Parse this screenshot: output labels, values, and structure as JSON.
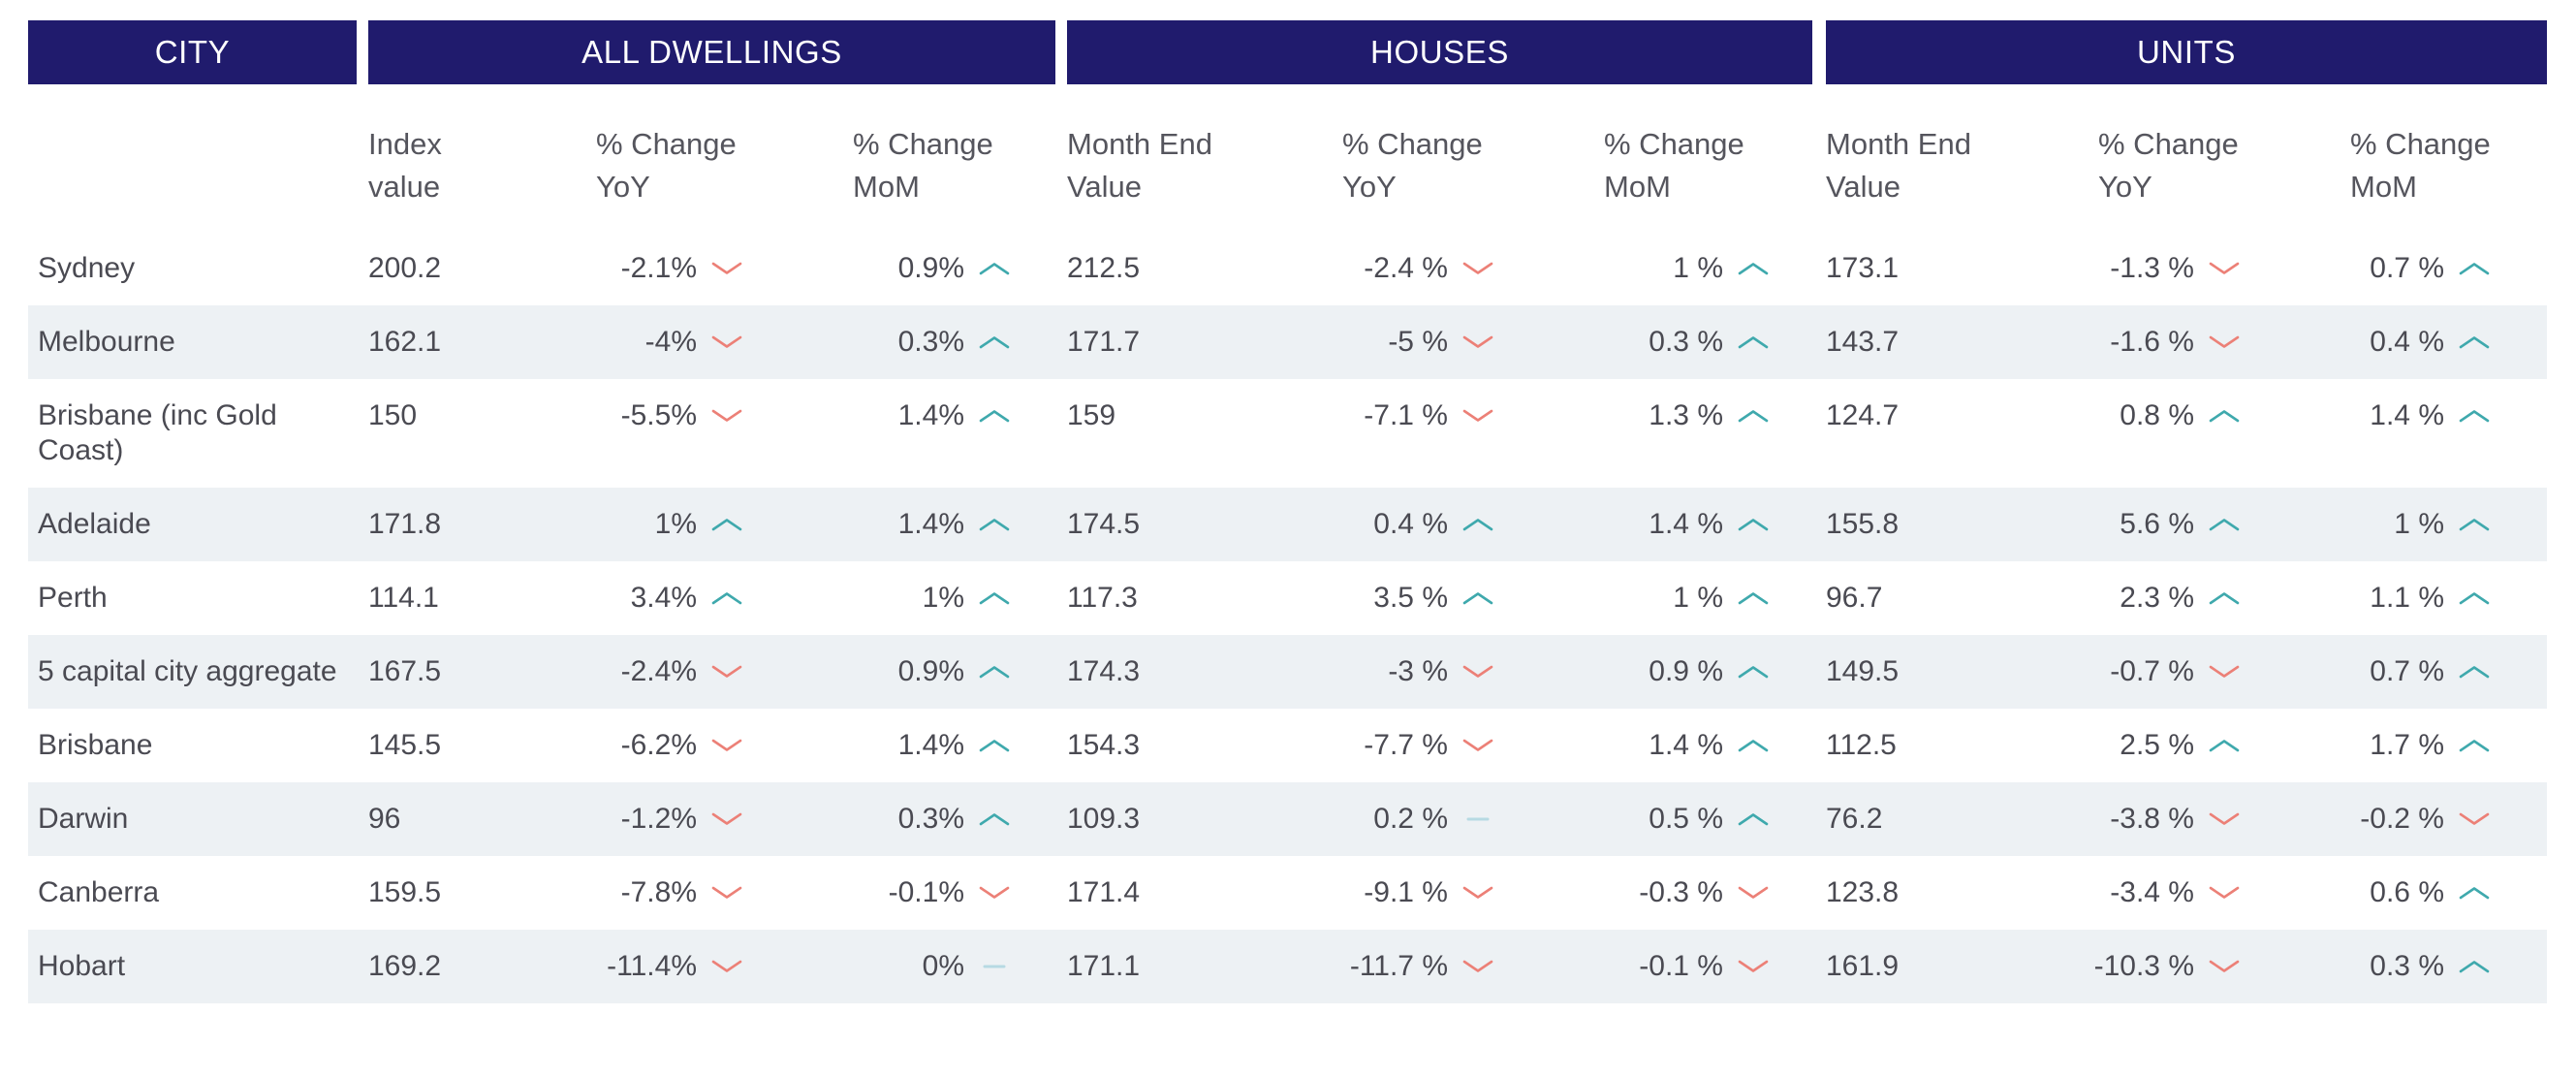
{
  "colors": {
    "header_bg": "#201B6D",
    "header_text": "#FFFFFF",
    "body_text": "#4A4A52",
    "subheader_text": "#55555D",
    "row_stripe": "#EDF1F4",
    "trend_up": "#3FA9AD",
    "trend_down": "#EC8077",
    "trend_flat": "#B7DAE3"
  },
  "table": {
    "group_headers": [
      "CITY",
      "ALL DWELLINGS",
      "HOUSES",
      "UNITS"
    ],
    "column_headers": [
      [
        "Index",
        "value"
      ],
      [
        "% Change",
        "YoY"
      ],
      [
        "% Change",
        "MoM"
      ],
      [
        "Month End",
        "Value"
      ],
      [
        "% Change",
        "YoY"
      ],
      [
        "% Change",
        "MoM"
      ],
      [
        "Month End",
        "Value"
      ],
      [
        "% Change",
        "YoY"
      ],
      [
        "% Change",
        "MoM"
      ]
    ],
    "rows": [
      {
        "city": "Sydney",
        "metrics": [
          {
            "v": "200.2"
          },
          {
            "v": "-2.1%",
            "t": "down"
          },
          {
            "v": "0.9%",
            "t": "up"
          },
          {
            "v": "212.5"
          },
          {
            "v": "-2.4 %",
            "t": "down"
          },
          {
            "v": "1 %",
            "t": "up"
          },
          {
            "v": "173.1"
          },
          {
            "v": "-1.3 %",
            "t": "down"
          },
          {
            "v": "0.7 %",
            "t": "up"
          }
        ]
      },
      {
        "city": "Melbourne",
        "metrics": [
          {
            "v": "162.1"
          },
          {
            "v": "-4%",
            "t": "down"
          },
          {
            "v": "0.3%",
            "t": "up"
          },
          {
            "v": "171.7"
          },
          {
            "v": "-5 %",
            "t": "down"
          },
          {
            "v": "0.3 %",
            "t": "up"
          },
          {
            "v": "143.7"
          },
          {
            "v": "-1.6 %",
            "t": "down"
          },
          {
            "v": "0.4 %",
            "t": "up"
          }
        ]
      },
      {
        "city": "Brisbane (inc Gold Coast)",
        "metrics": [
          {
            "v": "150"
          },
          {
            "v": "-5.5%",
            "t": "down"
          },
          {
            "v": "1.4%",
            "t": "up"
          },
          {
            "v": "159"
          },
          {
            "v": "-7.1 %",
            "t": "down"
          },
          {
            "v": "1.3 %",
            "t": "up"
          },
          {
            "v": "124.7"
          },
          {
            "v": "0.8 %",
            "t": "up"
          },
          {
            "v": "1.4 %",
            "t": "up"
          }
        ]
      },
      {
        "city": "Adelaide",
        "metrics": [
          {
            "v": "171.8"
          },
          {
            "v": "1%",
            "t": "up"
          },
          {
            "v": "1.4%",
            "t": "up"
          },
          {
            "v": "174.5"
          },
          {
            "v": "0.4 %",
            "t": "up"
          },
          {
            "v": "1.4 %",
            "t": "up"
          },
          {
            "v": "155.8"
          },
          {
            "v": "5.6 %",
            "t": "up"
          },
          {
            "v": "1 %",
            "t": "up"
          }
        ]
      },
      {
        "city": "Perth",
        "metrics": [
          {
            "v": "114.1"
          },
          {
            "v": "3.4%",
            "t": "up"
          },
          {
            "v": "1%",
            "t": "up"
          },
          {
            "v": "117.3"
          },
          {
            "v": "3.5 %",
            "t": "up"
          },
          {
            "v": "1 %",
            "t": "up"
          },
          {
            "v": "96.7"
          },
          {
            "v": "2.3 %",
            "t": "up"
          },
          {
            "v": "1.1 %",
            "t": "up"
          }
        ]
      },
      {
        "city": "5 capital city aggregate",
        "metrics": [
          {
            "v": "167.5"
          },
          {
            "v": "-2.4%",
            "t": "down"
          },
          {
            "v": "0.9%",
            "t": "up"
          },
          {
            "v": "174.3"
          },
          {
            "v": "-3 %",
            "t": "down"
          },
          {
            "v": "0.9 %",
            "t": "up"
          },
          {
            "v": "149.5"
          },
          {
            "v": "-0.7 %",
            "t": "down"
          },
          {
            "v": "0.7 %",
            "t": "up"
          }
        ]
      },
      {
        "city": "Brisbane",
        "metrics": [
          {
            "v": "145.5"
          },
          {
            "v": "-6.2%",
            "t": "down"
          },
          {
            "v": "1.4%",
            "t": "up"
          },
          {
            "v": "154.3"
          },
          {
            "v": "-7.7 %",
            "t": "down"
          },
          {
            "v": "1.4 %",
            "t": "up"
          },
          {
            "v": "112.5"
          },
          {
            "v": "2.5 %",
            "t": "up"
          },
          {
            "v": "1.7 %",
            "t": "up"
          }
        ]
      },
      {
        "city": "Darwin",
        "metrics": [
          {
            "v": "96"
          },
          {
            "v": "-1.2%",
            "t": "down"
          },
          {
            "v": "0.3%",
            "t": "up"
          },
          {
            "v": "109.3"
          },
          {
            "v": "0.2 %",
            "t": "flat"
          },
          {
            "v": "0.5 %",
            "t": "up"
          },
          {
            "v": "76.2"
          },
          {
            "v": "-3.8 %",
            "t": "down"
          },
          {
            "v": "-0.2 %",
            "t": "down"
          }
        ]
      },
      {
        "city": "Canberra",
        "metrics": [
          {
            "v": "159.5"
          },
          {
            "v": "-7.8%",
            "t": "down"
          },
          {
            "v": "-0.1%",
            "t": "down"
          },
          {
            "v": "171.4"
          },
          {
            "v": "-9.1 %",
            "t": "down"
          },
          {
            "v": "-0.3 %",
            "t": "down"
          },
          {
            "v": "123.8"
          },
          {
            "v": "-3.4 %",
            "t": "down"
          },
          {
            "v": "0.6 %",
            "t": "up"
          }
        ]
      },
      {
        "city": "Hobart",
        "metrics": [
          {
            "v": "169.2"
          },
          {
            "v": "-11.4%",
            "t": "down"
          },
          {
            "v": "0%",
            "t": "flat"
          },
          {
            "v": "171.1"
          },
          {
            "v": "-11.7 %",
            "t": "down"
          },
          {
            "v": "-0.1 %",
            "t": "down"
          },
          {
            "v": "161.9"
          },
          {
            "v": "-10.3 %",
            "t": "down"
          },
          {
            "v": "0.3 %",
            "t": "up"
          }
        ]
      }
    ]
  },
  "chart_data": {
    "type": "table",
    "column_groups": [
      "CITY",
      "ALL DWELLINGS",
      "HOUSES",
      "UNITS"
    ],
    "columns": [
      "City",
      "All Dwellings Index value",
      "All Dwellings % Change YoY",
      "All Dwellings % Change MoM",
      "Houses Month End Value",
      "Houses % Change YoY",
      "Houses % Change MoM",
      "Units Month End Value",
      "Units % Change YoY",
      "Units % Change MoM"
    ],
    "rows": [
      [
        "Sydney",
        200.2,
        -2.1,
        0.9,
        212.5,
        -2.4,
        1,
        173.1,
        -1.3,
        0.7
      ],
      [
        "Melbourne",
        162.1,
        -4,
        0.3,
        171.7,
        -5,
        0.3,
        143.7,
        -1.6,
        0.4
      ],
      [
        "Brisbane (inc Gold Coast)",
        150,
        -5.5,
        1.4,
        159,
        -7.1,
        1.3,
        124.7,
        0.8,
        1.4
      ],
      [
        "Adelaide",
        171.8,
        1,
        1.4,
        174.5,
        0.4,
        1.4,
        155.8,
        5.6,
        1
      ],
      [
        "Perth",
        114.1,
        3.4,
        1,
        117.3,
        3.5,
        1,
        96.7,
        2.3,
        1.1
      ],
      [
        "5 capital city aggregate",
        167.5,
        -2.4,
        0.9,
        174.3,
        -3,
        0.9,
        149.5,
        -0.7,
        0.7
      ],
      [
        "Brisbane",
        145.5,
        -6.2,
        1.4,
        154.3,
        -7.7,
        1.4,
        112.5,
        2.5,
        1.7
      ],
      [
        "Darwin",
        96,
        -1.2,
        0.3,
        109.3,
        0.2,
        0.5,
        76.2,
        -3.8,
        -0.2
      ],
      [
        "Canberra",
        159.5,
        -7.8,
        -0.1,
        171.4,
        -9.1,
        -0.3,
        123.8,
        -3.4,
        0.6
      ],
      [
        "Hobart",
        169.2,
        -11.4,
        0,
        171.1,
        -11.7,
        -0.1,
        161.9,
        -10.3,
        0.3
      ]
    ]
  }
}
